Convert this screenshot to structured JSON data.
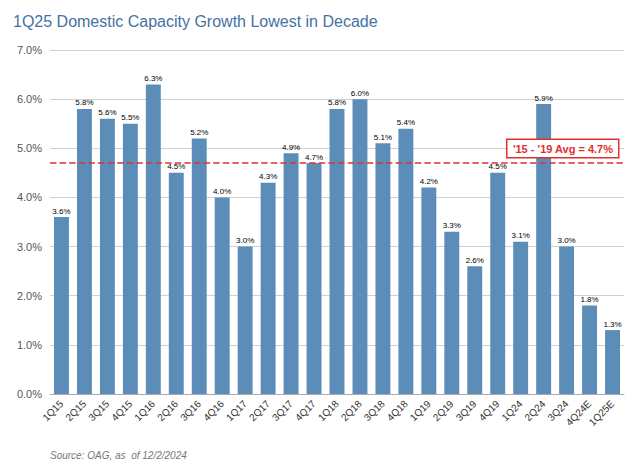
{
  "chart_data": {
    "type": "bar",
    "title": "1Q25 Domestic Capacity Growth Lowest in Decade",
    "categories": [
      "1Q15",
      "2Q15",
      "3Q15",
      "4Q15",
      "1Q16",
      "2Q16",
      "3Q16",
      "4Q16",
      "1Q17",
      "2Q17",
      "3Q17",
      "4Q17",
      "1Q18",
      "2Q18",
      "3Q18",
      "4Q18",
      "1Q19",
      "2Q19",
      "3Q19",
      "4Q19",
      "1Q24",
      "2Q24",
      "3Q24",
      "4Q24E",
      "1Q25E"
    ],
    "values": [
      3.6,
      5.8,
      5.6,
      5.5,
      6.3,
      4.5,
      5.2,
      4.0,
      3.0,
      4.3,
      4.9,
      4.7,
      5.8,
      6.0,
      5.1,
      5.4,
      4.2,
      3.3,
      2.6,
      4.5,
      3.1,
      5.9,
      3.0,
      1.8,
      1.3
    ],
    "value_labels": [
      "3.6%",
      "5.8%",
      "5.6%",
      "5.5%",
      "6.3%",
      "4.5%",
      "5.2%",
      "4.0%",
      "3.0%",
      "4.3%",
      "4.9%",
      "4.7%",
      "5.8%",
      "6.0%",
      "5.1%",
      "5.4%",
      "4.2%",
      "3.3%",
      "2.6%",
      "4.5%",
      "3.1%",
      "5.9%",
      "3.0%",
      "1.8%",
      "1.3%"
    ],
    "data_labels": true,
    "color": "#5b8db8",
    "ylim": [
      0,
      7.0
    ],
    "yticks": [
      {
        "value": 0.0,
        "label": "0.0%"
      },
      {
        "value": 1.0,
        "label": "1.0%"
      },
      {
        "value": 2.0,
        "label": "2.0%"
      },
      {
        "value": 3.0,
        "label": "3.0%"
      },
      {
        "value": 4.0,
        "label": "4.0%"
      },
      {
        "value": 5.0,
        "label": "5.0%"
      },
      {
        "value": 6.0,
        "label": "6.0%"
      },
      {
        "value": 7.0,
        "label": "7.0%"
      }
    ],
    "grid": true,
    "avg_line": {
      "value": 4.7,
      "label": "'15 - '19 Avg = 4.7%",
      "color": "#e03030",
      "line_style": "dashed"
    },
    "source": "Source: OAG, as  of 12/2/2024"
  }
}
